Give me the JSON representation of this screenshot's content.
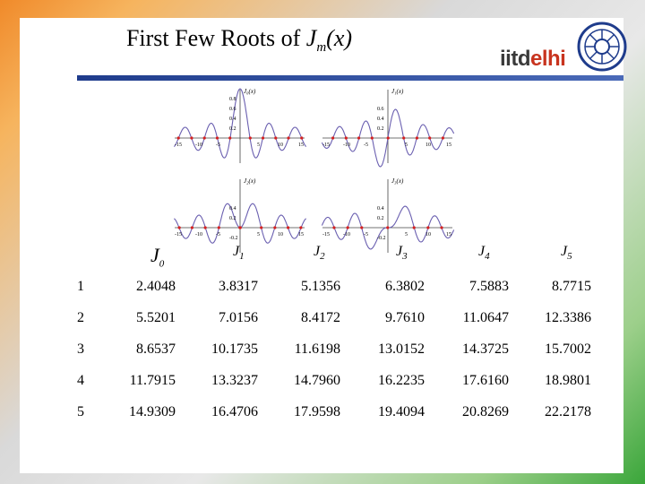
{
  "title": {
    "prefix": "First Few Roots of ",
    "var": "J",
    "sub": "m",
    "suffix": "(x)"
  },
  "logo": {
    "part1": "iitd",
    "part2": "elhi"
  },
  "columns": [
    {
      "label": "J",
      "sub": "0"
    },
    {
      "label": "J",
      "sub": "1"
    },
    {
      "label": "J",
      "sub": "2"
    },
    {
      "label": "J",
      "sub": "3"
    },
    {
      "label": "J",
      "sub": "4"
    },
    {
      "label": "J",
      "sub": "5"
    }
  ],
  "rows": [
    {
      "n": "1",
      "values": [
        "2.4048",
        "3.8317",
        "5.1356",
        "6.3802",
        "7.5883",
        "8.7715"
      ]
    },
    {
      "n": "2",
      "values": [
        "5.5201",
        "7.0156",
        "8.4172",
        "9.7610",
        "11.0647",
        "12.3386"
      ]
    },
    {
      "n": "3",
      "values": [
        "8.6537",
        "10.1735",
        "11.6198",
        "13.0152",
        "14.3725",
        "15.7002"
      ]
    },
    {
      "n": "4",
      "values": [
        "11.7915",
        "13.3237",
        "14.7960",
        "16.2235",
        "17.6160",
        "18.9801"
      ]
    },
    {
      "n": "5",
      "values": [
        "14.9309",
        "16.4706",
        "17.9598",
        "19.4094",
        "20.8269",
        "22.2178"
      ]
    }
  ],
  "plots": [
    {
      "label": "J₀(x)",
      "ticks_y": [
        "0.8",
        "0.6",
        "0.4",
        "0.2"
      ],
      "ticks_x": [
        "-15",
        "-10",
        "-5",
        "5",
        "10",
        "15"
      ]
    },
    {
      "label": "J₁(x)",
      "ticks_y": [
        "0.6",
        "0.4",
        "0.2"
      ],
      "ticks_x": [
        "-15",
        "-10",
        "-5",
        "5",
        "10",
        "15"
      ]
    },
    {
      "label": "J₂(x)",
      "ticks_y": [
        "0.4",
        "0.2",
        "-0.2"
      ],
      "ticks_x": [
        "-15",
        "-10",
        "-5",
        "5",
        "10",
        "15"
      ]
    },
    {
      "label": "J₃(x)",
      "ticks_y": [
        "0.4",
        "0.2",
        "-0.2"
      ],
      "ticks_x": [
        "-15",
        "-10",
        "-5",
        "5",
        "10",
        "15"
      ]
    }
  ]
}
